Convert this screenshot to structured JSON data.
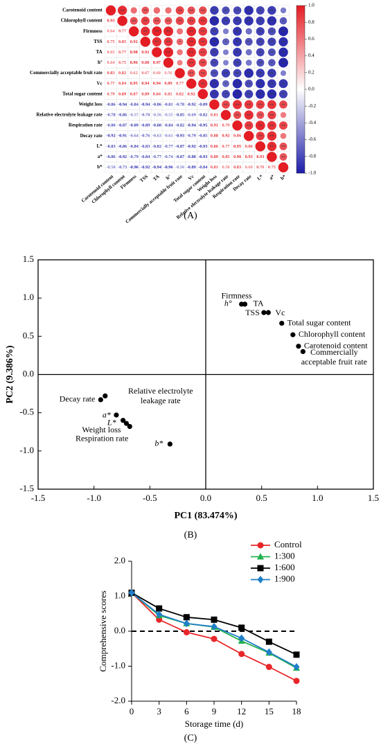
{
  "chart_data": [
    {
      "type": "correlation",
      "labels": [
        "Carotenoid content",
        "Chlorophyll content",
        "Firmness",
        "TSS",
        "TA",
        "h°",
        "Commercially acceptable fruit rate",
        "Vc",
        "Total sugar content",
        "Weight loss",
        "Relative electrolyte leakage rate",
        "Respiration rate",
        "Decay rate",
        "L*",
        "a*",
        "b*"
      ],
      "matrix": [
        [
          1
        ],
        [
          0.93,
          1
        ],
        [
          0.64,
          0.77,
          1
        ],
        [
          0.75,
          0.85,
          0.92,
          1
        ],
        [
          0.65,
          0.77,
          0.98,
          0.92,
          1
        ],
        [
          0.64,
          0.75,
          0.96,
          0.88,
          0.97,
          1
        ],
        [
          0.83,
          0.82,
          0.62,
          0.67,
          0.6,
          0.56,
          1
        ],
        [
          0.77,
          0.84,
          0.95,
          0.94,
          0.94,
          0.89,
          0.77,
          1
        ],
        [
          0.79,
          0.89,
          0.87,
          0.89,
          0.84,
          0.81,
          0.82,
          0.92,
          1
        ],
        [
          -0.86,
          -0.94,
          -0.84,
          -0.94,
          -0.86,
          -0.81,
          -0.78,
          -0.92,
          -0.89,
          1
        ],
        [
          -0.78,
          -0.86,
          -0.57,
          -0.7,
          -0.56,
          -0.55,
          -0.85,
          -0.69,
          -0.82,
          0.81,
          1
        ],
        [
          -0.8,
          -0.87,
          -0.89,
          -0.89,
          -0.88,
          -0.84,
          -0.82,
          -0.94,
          -0.95,
          0.91,
          0.79,
          1
        ],
        [
          -0.92,
          -0.91,
          -0.64,
          -0.76,
          -0.63,
          -0.61,
          -0.93,
          -0.79,
          -0.85,
          0.88,
          0.92,
          0.86,
          1
        ],
        [
          -0.83,
          -0.86,
          -0.84,
          -0.83,
          -0.82,
          -0.77,
          -0.87,
          -0.92,
          -0.93,
          0.86,
          0.77,
          0.95,
          0.86,
          1
        ],
        [
          -0.86,
          -0.92,
          -0.79,
          -0.84,
          -0.77,
          -0.74,
          -0.87,
          -0.88,
          -0.93,
          0.89,
          0.85,
          0.9,
          0.93,
          0.93,
          1
        ],
        [
          -0.58,
          -0.73,
          -0.96,
          -0.92,
          -0.94,
          -0.96,
          -0.56,
          -0.89,
          -0.84,
          0.81,
          0.58,
          0.83,
          0.6,
          0.76,
          0.75,
          1
        ]
      ],
      "value_labels": [
        [
          null
        ],
        [
          "0.93",
          null
        ],
        [
          "0.64",
          "0.77",
          null
        ],
        [
          "0.75",
          "0.85",
          "0.92",
          null
        ],
        [
          "0.65",
          "0.77",
          "0.98",
          "0.92",
          null
        ],
        [
          "0.64",
          "0.75",
          "0.96",
          "0.88",
          "0.97",
          null
        ],
        [
          "0.83",
          "0.82",
          "0.62",
          "0.67",
          "0.60",
          "0.56",
          null
        ],
        [
          "0.77",
          "0.84",
          "0.95",
          "0.94",
          "0.94",
          "0.89",
          "0.77",
          null
        ],
        [
          "0.79",
          "0.89",
          "0.87",
          "0.89",
          "0.84",
          "0.81",
          "0.82",
          "0.92",
          null
        ],
        [
          "-0.86",
          "-0.94",
          "-0.84",
          "-0.94",
          "-0.86",
          "-0.81",
          "-0.78",
          "-0.92",
          "-0.89",
          null
        ],
        [
          "-0.78",
          "-0.86",
          "-0.57",
          "-0.70",
          "-0.56",
          "-0.55",
          "-0.85",
          "-0.69",
          "-0.82",
          "0.81",
          null
        ],
        [
          "-0.80",
          "-0.87",
          "-0.89",
          "-0.89",
          "-0.88",
          "-0.84",
          "-0.82",
          "-0.94",
          "-0.95",
          "0.91",
          "0.79",
          null
        ],
        [
          "-0.92",
          "-0.91",
          "-0.64",
          "-0.76",
          "-0.63",
          "-0.61",
          "-0.93",
          "-0.79",
          "-0.85",
          "0.88",
          "0.92",
          "0.86",
          null
        ],
        [
          "-0.83",
          "-0.86",
          "-0.84",
          "-0.83",
          "-0.82",
          "-0.77",
          "-0.87",
          "-0.92",
          "-0.93",
          "0.86",
          "0.77",
          "0.95",
          "0.86",
          null
        ],
        [
          "-0.86",
          "-0.92",
          "-0.79",
          "-0.84",
          "-0.77",
          "-0.74",
          "-0.87",
          "-0.88",
          "-0.93",
          "0.89",
          "0.85",
          "0.90",
          "0.93",
          "0.93",
          null
        ],
        [
          "-0.58",
          "-0.73",
          "-0.96",
          "-0.92",
          "-0.94",
          "-0.96",
          "-0.56",
          "-0.89",
          "-0.84",
          "0.81",
          "0.58",
          "0.83",
          "0.60",
          "0.76",
          "0.75",
          null
        ]
      ],
      "significance": [
        [
          null
        ],
        [
          "**",
          null
        ],
        [
          null,
          "**",
          null
        ],
        [
          "**",
          "**",
          "**",
          null
        ],
        [
          null,
          "**",
          "**",
          "**",
          null
        ],
        [
          null,
          "**",
          "**",
          "**",
          "**",
          null
        ],
        [
          "**",
          "**",
          null,
          "*",
          null,
          null,
          null
        ],
        [
          "**",
          "**",
          "**",
          "**",
          "**",
          "**",
          "**",
          null
        ],
        [
          "**",
          "**",
          "**",
          "**",
          "**",
          "**",
          "**",
          "**",
          null
        ],
        [
          "**",
          "**",
          "**",
          "**",
          "**",
          "**",
          "**",
          "**",
          "**",
          null
        ],
        [
          "**",
          "**",
          null,
          "*",
          null,
          null,
          "**",
          "*",
          "**",
          "**",
          null
        ],
        [
          "**",
          "**",
          "**",
          "**",
          "**",
          "**",
          "**",
          "**",
          "**",
          "**",
          "**",
          null
        ],
        [
          "**",
          "**",
          null,
          "**",
          null,
          null,
          "**",
          "**",
          "**",
          "**",
          "**",
          "**",
          null
        ],
        [
          "**",
          "**",
          "**",
          "**",
          "**",
          "**",
          "**",
          "**",
          "**",
          "**",
          "**",
          "**",
          "**",
          null
        ],
        [
          "**",
          "**",
          "**",
          "**",
          "**",
          "*",
          "**",
          "**",
          "**",
          "**",
          "**",
          "**",
          "**",
          "**",
          null
        ],
        [
          null,
          "*",
          "**",
          "**",
          "**",
          "**",
          null,
          "**",
          "**",
          "**",
          null,
          "**",
          null,
          "**",
          "**",
          null
        ]
      ],
      "colors": {
        "negative": "#1c1ca8",
        "zero": "#ffffff",
        "positive": "#e41c23"
      },
      "clim": [
        -1,
        1
      ],
      "cticks": [
        {
          "value": 1,
          "label": "1.0"
        },
        0.8,
        0.6,
        0.4,
        0.2,
        {
          "value": 0,
          "label": "0.0"
        },
        -0.2,
        -0.4,
        -0.6,
        -0.8,
        {
          "value": -1,
          "label": "-1.0"
        }
      ],
      "caption": "(A)"
    },
    {
      "type": "scatter",
      "point_labels": [
        "Firmness",
        "TA",
        "TSS",
        "Vc",
        "h°",
        "Total sugar content",
        "Chlorophyll content",
        "Carotenoid content",
        "Commercially acceptable fruit rate",
        "Relative electrolyte leakage rate",
        "Decay rate",
        "a*",
        "L*",
        "Weight loss",
        "Respiration rate",
        "b*"
      ],
      "x": [
        0.35,
        0.35,
        0.52,
        0.56,
        0.32,
        0.68,
        0.78,
        0.83,
        0.87,
        -0.9,
        -0.94,
        -0.8,
        -0.74,
        -0.71,
        -0.68,
        -0.32
      ],
      "values": [
        0.92,
        0.92,
        0.81,
        0.81,
        0.92,
        0.67,
        0.52,
        0.37,
        0.3,
        -0.28,
        -0.33,
        -0.53,
        -0.6,
        -0.64,
        -0.68,
        -0.91
      ],
      "color": "#000000",
      "xlim": [
        -1.5,
        1.5
      ],
      "ylim": [
        -1.5,
        1.5
      ],
      "xticks": [
        -1.5,
        {
          "value": -1,
          "label": "-1.0"
        },
        -0.5,
        {
          "value": 0,
          "label": "0.0"
        },
        0.5,
        {
          "value": 1,
          "label": "1.0"
        },
        1.5
      ],
      "yticks": [
        -1.5,
        {
          "value": -1,
          "label": "-1.0"
        },
        -0.5,
        {
          "value": 0,
          "label": "0.0"
        },
        0.5,
        {
          "value": 1,
          "label": "1.0"
        },
        1.5
      ],
      "zero_lines": true,
      "xlabel": "PC1 (83.474%)",
      "ylabel": "PC2 (9.386%)",
      "caption": "(B)"
    },
    {
      "type": "line",
      "x": [
        0,
        3,
        6,
        9,
        12,
        15,
        18
      ],
      "series": [
        {
          "name": "Control",
          "color": "#e8262a",
          "marker": "circle",
          "values": [
            1.1,
            0.33,
            -0.03,
            -0.22,
            -0.65,
            -1.02,
            -1.42
          ]
        },
        {
          "name": "1:300",
          "color": "#22b24c",
          "marker": "triangle",
          "values": [
            1.1,
            0.45,
            0.22,
            0.12,
            -0.28,
            -0.62,
            -1.05
          ]
        },
        {
          "name": "1:600",
          "color": "#000000",
          "marker": "square",
          "values": [
            1.1,
            0.65,
            0.4,
            0.33,
            0.1,
            -0.3,
            -0.67
          ]
        },
        {
          "name": "1:900",
          "color": "#1f7fc8",
          "marker": "diamond",
          "values": [
            1.1,
            0.48,
            0.22,
            0.13,
            -0.2,
            -0.6,
            -1.02
          ]
        }
      ],
      "xlim": [
        0,
        18
      ],
      "ylim": [
        -2,
        2
      ],
      "xticks": [
        0,
        3,
        6,
        9,
        12,
        15,
        18
      ],
      "yticks": [
        {
          "value": -2,
          "label": "-2.0"
        },
        {
          "value": -1,
          "label": "-1.0"
        },
        {
          "value": 0,
          "label": "0.0"
        },
        {
          "value": 1,
          "label": "1.0"
        },
        {
          "value": 2,
          "label": "2.0"
        }
      ],
      "hline": 0,
      "legend": "upper right",
      "xlabel": "Storage time (d)",
      "ylabel": "Comprehensive scores",
      "caption": "(C)"
    }
  ]
}
